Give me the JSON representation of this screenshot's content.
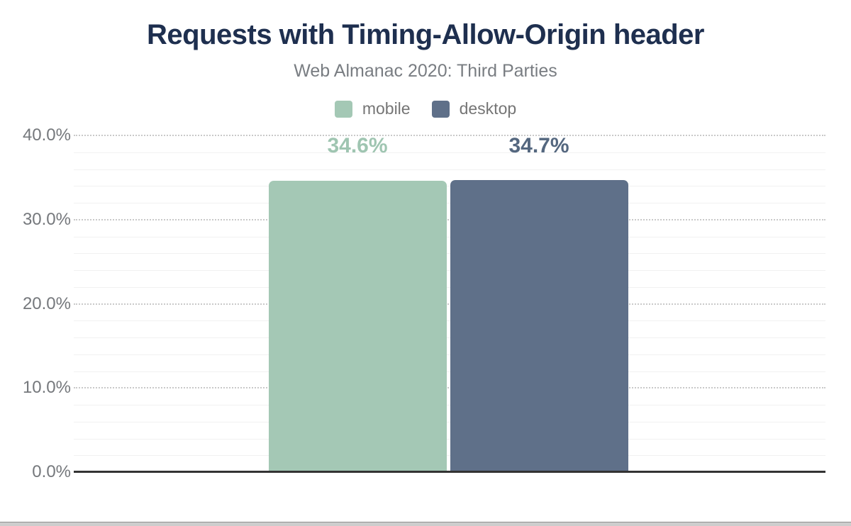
{
  "chart_data": {
    "type": "bar",
    "title": "Requests with Timing-Allow-Origin header",
    "subtitle": "Web Almanac 2020: Third Parties",
    "categories": [
      "Requests with Timing-Allow-Origin header"
    ],
    "series": [
      {
        "name": "mobile",
        "value": 34.6,
        "label": "34.6%",
        "color": "#a4c8b5",
        "label_color": "#9fc5b1"
      },
      {
        "name": "desktop",
        "value": 34.7,
        "label": "34.7%",
        "color": "#5f7089",
        "label_color": "#54677f"
      }
    ],
    "xlabel": "",
    "ylabel": "",
    "ylim": [
      0,
      40
    ],
    "yticks": [
      {
        "value": 0,
        "label": "0.0%"
      },
      {
        "value": 10,
        "label": "10.0%"
      },
      {
        "value": 20,
        "label": "20.0%"
      },
      {
        "value": 30,
        "label": "30.0%"
      },
      {
        "value": 40,
        "label": "40.0%"
      }
    ],
    "minor_grid_step": 2,
    "grid": true,
    "legend_position": "top"
  },
  "style": {
    "background": "#ffffff",
    "title_color": "#1e2f4f",
    "subtitle_color": "#797d82",
    "legend_label_color": "#757575",
    "tick_label_color": "#75787c",
    "axis_color": "#333333",
    "grid_major_color": "#c9c9c9",
    "grid_minor_color": "#f1f1f1",
    "scrollbar_track_color": "#cdcdcd",
    "scrollbar_edge_color": "#8f8f8f"
  }
}
